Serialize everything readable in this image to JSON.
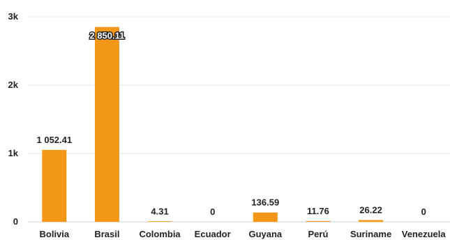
{
  "chart_data": {
    "type": "bar",
    "categories": [
      "Bolivia",
      "Brasil",
      "Colombia",
      "Ecuador",
      "Guyana",
      "Perú",
      "Suriname",
      "Venezuela"
    ],
    "values": [
      1052.41,
      2850.11,
      4.31,
      0,
      136.59,
      11.76,
      26.22,
      0
    ],
    "value_labels": [
      "1 052.41",
      "2 850.11",
      "4.31",
      "0",
      "136.59",
      "11.76",
      "26.22",
      "0"
    ],
    "y_ticks": [
      0,
      1000,
      2000,
      3000
    ],
    "y_tick_labels": [
      "0",
      "1k",
      "2k",
      "3k"
    ],
    "ylim": [
      0,
      3000
    ],
    "grid": true,
    "colors": {
      "bar": "#f39719"
    }
  }
}
